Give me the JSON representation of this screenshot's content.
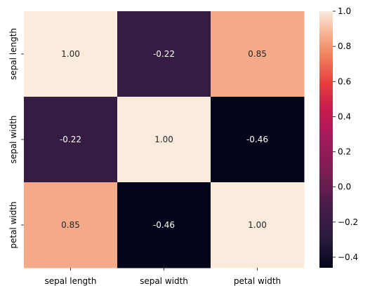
{
  "chart_data": {
    "type": "heatmap",
    "title": "",
    "xlabel": "",
    "ylabel": "",
    "x_categories": [
      "sepal length",
      "sepal width",
      "petal width"
    ],
    "y_categories": [
      "sepal length",
      "sepal width",
      "petal width"
    ],
    "values": [
      [
        1.0,
        -0.22,
        0.85
      ],
      [
        -0.22,
        1.0,
        -0.46
      ],
      [
        0.85,
        -0.46,
        1.0
      ]
    ],
    "cell_labels": [
      [
        "1.00",
        "-0.22",
        "0.85"
      ],
      [
        "-0.22",
        "1.00",
        "-0.46"
      ],
      [
        "0.85",
        "-0.46",
        "1.00"
      ]
    ],
    "colorbar": {
      "range": [
        -0.46,
        1.0
      ],
      "ticks": [
        "1.0",
        "0.8",
        "0.6",
        "0.4",
        "0.2",
        "0.0",
        "−0.2",
        "−0.4"
      ],
      "tick_values": [
        1.0,
        0.8,
        0.6,
        0.4,
        0.2,
        0.0,
        -0.2,
        -0.4
      ],
      "colormap": "rocket"
    },
    "grid": false,
    "legend": "colorbar-right"
  }
}
